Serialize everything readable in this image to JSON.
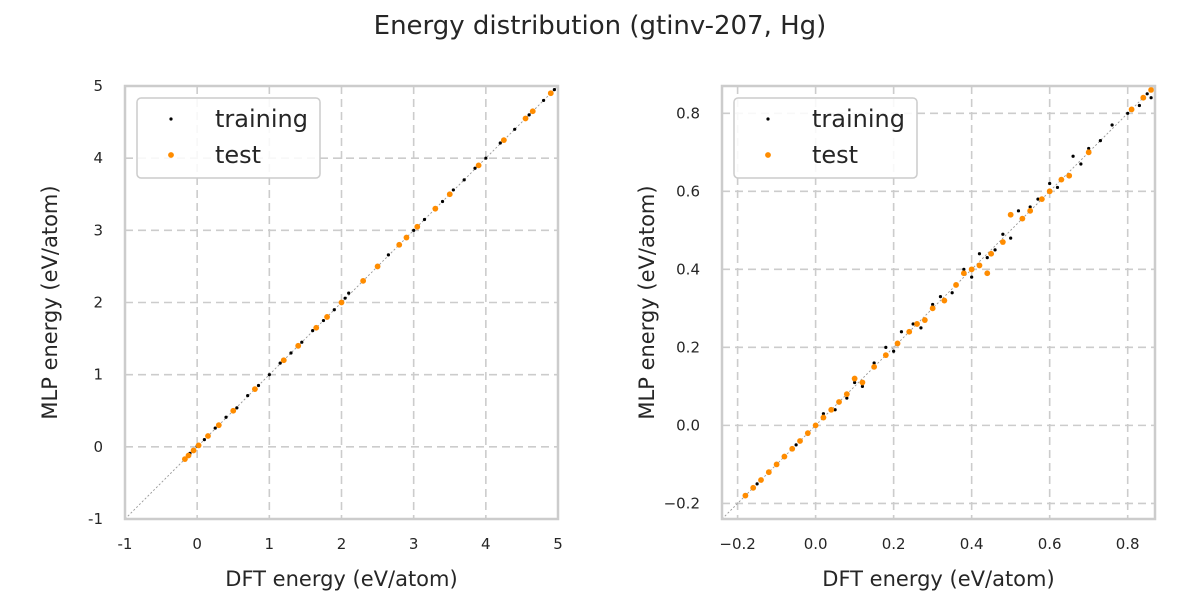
{
  "figure": {
    "title": "Energy distribution (gtinv-207, Hg)"
  },
  "chart_data": [
    {
      "type": "scatter",
      "panel": "left",
      "xlabel": "DFT energy (eV/atom)",
      "ylabel": "MLP energy (eV/atom)",
      "xlim": [
        -1,
        5
      ],
      "ylim": [
        -1,
        5
      ],
      "xticks": [
        "-1",
        "0",
        "1",
        "2",
        "3",
        "4",
        "5"
      ],
      "yticks": [
        "-1",
        "0",
        "1",
        "2",
        "3",
        "4",
        "5"
      ],
      "grid": true,
      "legend_position": "upper-left",
      "reference_line": "y = x",
      "series": [
        {
          "name": "training",
          "color": "#000000",
          "points": [
            [
              -0.18,
              -0.18
            ],
            [
              -0.1,
              -0.09
            ],
            [
              0.0,
              0.01
            ],
            [
              0.1,
              0.1
            ],
            [
              0.25,
              0.26
            ],
            [
              0.4,
              0.41
            ],
            [
              0.55,
              0.54
            ],
            [
              0.7,
              0.71
            ],
            [
              0.85,
              0.85
            ],
            [
              1.0,
              1.0
            ],
            [
              1.15,
              1.16
            ],
            [
              1.3,
              1.3
            ],
            [
              1.45,
              1.45
            ],
            [
              1.6,
              1.61
            ],
            [
              1.75,
              1.75
            ],
            [
              1.9,
              1.9
            ],
            [
              2.05,
              2.06
            ],
            [
              2.1,
              2.13
            ],
            [
              2.3,
              2.3
            ],
            [
              2.5,
              2.5
            ],
            [
              2.65,
              2.66
            ],
            [
              2.8,
              2.8
            ],
            [
              3.0,
              3.0
            ],
            [
              3.15,
              3.15
            ],
            [
              3.4,
              3.4
            ],
            [
              3.55,
              3.56
            ],
            [
              3.7,
              3.7
            ],
            [
              3.85,
              3.86
            ],
            [
              4.0,
              4.0
            ],
            [
              4.2,
              4.21
            ],
            [
              4.4,
              4.4
            ],
            [
              4.6,
              4.6
            ],
            [
              4.8,
              4.8
            ],
            [
              4.95,
              4.95
            ]
          ]
        },
        {
          "name": "test",
          "color": "#ff8c00",
          "points": [
            [
              -0.17,
              -0.17
            ],
            [
              -0.12,
              -0.12
            ],
            [
              -0.05,
              -0.05
            ],
            [
              0.02,
              0.02
            ],
            [
              0.15,
              0.15
            ],
            [
              0.3,
              0.3
            ],
            [
              0.5,
              0.5
            ],
            [
              0.8,
              0.8
            ],
            [
              1.2,
              1.2
            ],
            [
              1.4,
              1.4
            ],
            [
              1.65,
              1.65
            ],
            [
              1.8,
              1.8
            ],
            [
              2.0,
              2.0
            ],
            [
              2.3,
              2.3
            ],
            [
              2.5,
              2.5
            ],
            [
              2.8,
              2.8
            ],
            [
              2.9,
              2.9
            ],
            [
              3.05,
              3.05
            ],
            [
              3.3,
              3.3
            ],
            [
              3.5,
              3.5
            ],
            [
              3.9,
              3.9
            ],
            [
              4.25,
              4.25
            ],
            [
              4.55,
              4.55
            ],
            [
              4.65,
              4.65
            ],
            [
              4.9,
              4.9
            ]
          ]
        }
      ]
    },
    {
      "type": "scatter",
      "panel": "right",
      "xlabel": "DFT energy (eV/atom)",
      "ylabel": "MLP energy (eV/atom)",
      "xlim": [
        -0.24,
        0.87
      ],
      "ylim": [
        -0.24,
        0.87
      ],
      "xticks": [
        "−0.2",
        "0.0",
        "0.2",
        "0.4",
        "0.6",
        "0.8"
      ],
      "yticks": [
        "−0.2",
        "0.0",
        "0.2",
        "0.4",
        "0.6",
        "0.8"
      ],
      "grid": true,
      "legend_position": "upper-left",
      "reference_line": "y = x",
      "series": [
        {
          "name": "training",
          "color": "#000000",
          "points": [
            [
              -0.18,
              -0.18
            ],
            [
              -0.15,
              -0.15
            ],
            [
              -0.1,
              -0.1
            ],
            [
              -0.05,
              -0.05
            ],
            [
              0.0,
              0.0
            ],
            [
              0.02,
              0.03
            ],
            [
              0.05,
              0.04
            ],
            [
              0.08,
              0.07
            ],
            [
              0.1,
              0.11
            ],
            [
              0.12,
              0.1
            ],
            [
              0.15,
              0.16
            ],
            [
              0.18,
              0.2
            ],
            [
              0.2,
              0.19
            ],
            [
              0.22,
              0.24
            ],
            [
              0.25,
              0.26
            ],
            [
              0.27,
              0.25
            ],
            [
              0.3,
              0.31
            ],
            [
              0.32,
              0.33
            ],
            [
              0.35,
              0.34
            ],
            [
              0.38,
              0.4
            ],
            [
              0.4,
              0.38
            ],
            [
              0.42,
              0.44
            ],
            [
              0.44,
              0.43
            ],
            [
              0.46,
              0.45
            ],
            [
              0.48,
              0.49
            ],
            [
              0.5,
              0.48
            ],
            [
              0.52,
              0.55
            ],
            [
              0.55,
              0.56
            ],
            [
              0.57,
              0.58
            ],
            [
              0.6,
              0.62
            ],
            [
              0.62,
              0.61
            ],
            [
              0.65,
              0.64
            ],
            [
              0.66,
              0.69
            ],
            [
              0.68,
              0.67
            ],
            [
              0.7,
              0.71
            ],
            [
              0.73,
              0.73
            ],
            [
              0.76,
              0.77
            ],
            [
              0.8,
              0.8
            ],
            [
              0.83,
              0.82
            ],
            [
              0.85,
              0.85
            ],
            [
              0.86,
              0.84
            ]
          ]
        },
        {
          "name": "test",
          "color": "#ff8c00",
          "points": [
            [
              -0.18,
              -0.18
            ],
            [
              -0.16,
              -0.16
            ],
            [
              -0.14,
              -0.14
            ],
            [
              -0.12,
              -0.12
            ],
            [
              -0.1,
              -0.1
            ],
            [
              -0.08,
              -0.08
            ],
            [
              -0.06,
              -0.06
            ],
            [
              -0.04,
              -0.04
            ],
            [
              -0.02,
              -0.02
            ],
            [
              0.0,
              0.0
            ],
            [
              0.02,
              0.02
            ],
            [
              0.04,
              0.04
            ],
            [
              0.06,
              0.06
            ],
            [
              0.08,
              0.08
            ],
            [
              0.1,
              0.12
            ],
            [
              0.12,
              0.11
            ],
            [
              0.15,
              0.15
            ],
            [
              0.18,
              0.18
            ],
            [
              0.21,
              0.21
            ],
            [
              0.24,
              0.24
            ],
            [
              0.26,
              0.26
            ],
            [
              0.28,
              0.27
            ],
            [
              0.3,
              0.3
            ],
            [
              0.33,
              0.32
            ],
            [
              0.36,
              0.36
            ],
            [
              0.38,
              0.39
            ],
            [
              0.4,
              0.4
            ],
            [
              0.42,
              0.41
            ],
            [
              0.44,
              0.39
            ],
            [
              0.45,
              0.44
            ],
            [
              0.48,
              0.47
            ],
            [
              0.5,
              0.54
            ],
            [
              0.53,
              0.53
            ],
            [
              0.55,
              0.55
            ],
            [
              0.58,
              0.58
            ],
            [
              0.6,
              0.6
            ],
            [
              0.63,
              0.63
            ],
            [
              0.65,
              0.64
            ],
            [
              0.7,
              0.7
            ],
            [
              0.81,
              0.81
            ],
            [
              0.84,
              0.84
            ],
            [
              0.86,
              0.86
            ]
          ]
        }
      ]
    }
  ]
}
